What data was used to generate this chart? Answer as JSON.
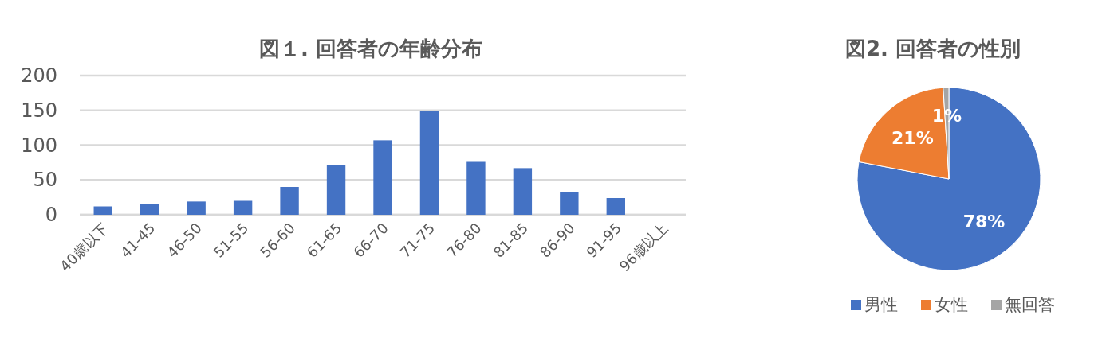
{
  "chart_data": [
    {
      "type": "bar",
      "title": "図１. 回答者の年齢分布",
      "categories": [
        "40歳以下",
        "41-45",
        "46-50",
        "51-55",
        "56-60",
        "61-65",
        "66-70",
        "71-75",
        "76-80",
        "81-85",
        "86-90",
        "91-95",
        "96歳以上"
      ],
      "values": [
        12,
        15,
        19,
        20,
        40,
        72,
        107,
        149,
        76,
        67,
        33,
        24,
        0
      ],
      "color": "#4472c4",
      "ylim": [
        0,
        200
      ],
      "yticks": [
        0,
        50,
        100,
        150,
        200
      ],
      "grid": "y"
    },
    {
      "type": "pie",
      "title": "図2. 回答者の性別",
      "categories": [
        "男性",
        "女性",
        "無回答"
      ],
      "values": [
        78,
        21,
        1
      ],
      "colors": [
        "#4472c4",
        "#ed7d31",
        "#a5a5a5"
      ],
      "value_labels": [
        "78%",
        "21%",
        "1%"
      ],
      "legend": "bottom"
    }
  ]
}
